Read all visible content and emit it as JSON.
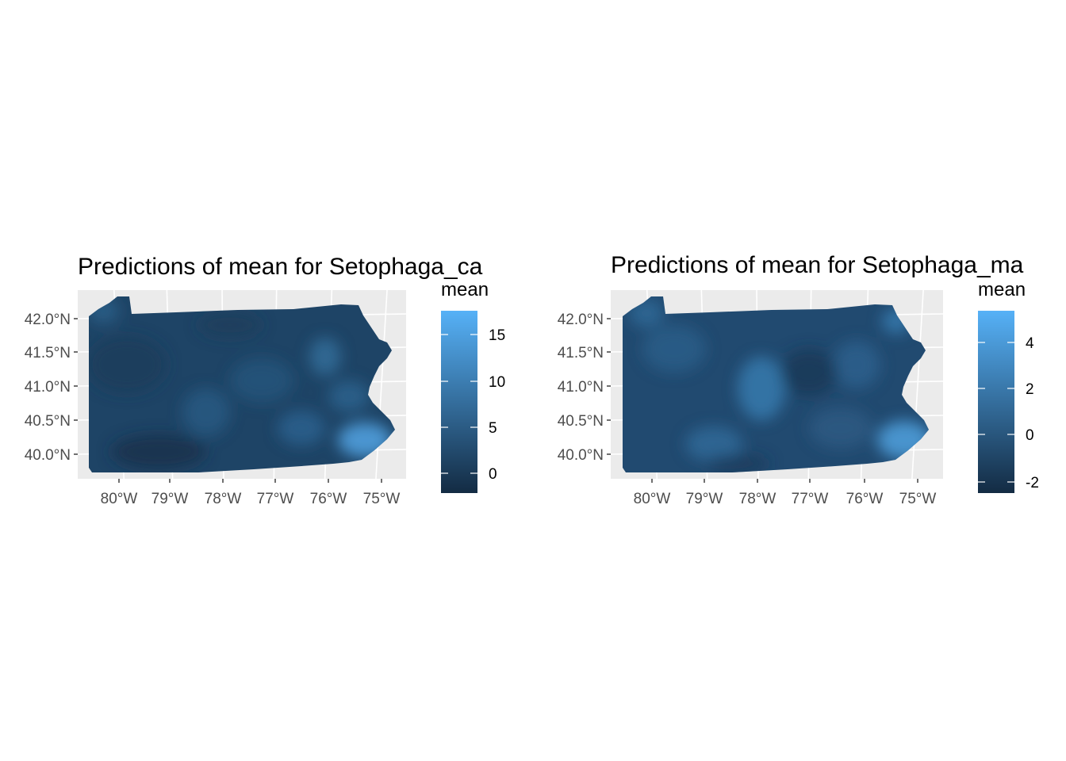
{
  "panels": [
    {
      "id": "left",
      "title": "Predictions of mean for Setophaga_ca",
      "legend_title": "mean",
      "legend_ticks": [
        "0",
        "5",
        "10",
        "15"
      ],
      "x_ticks": [
        "80°W",
        "79°W",
        "78°W",
        "77°W",
        "76°W",
        "75°W"
      ],
      "y_ticks": [
        "40.0°N",
        "40.5°N",
        "41.0°N",
        "41.5°N",
        "42.0°N"
      ]
    },
    {
      "id": "right",
      "title": "Predictions of mean for Setophaga_ma",
      "legend_title": "mean",
      "legend_ticks": [
        "-2",
        "0",
        "2",
        "4"
      ],
      "x_ticks": [
        "80°W",
        "79°W",
        "78°W",
        "77°W",
        "76°W",
        "75°W"
      ],
      "y_ticks": [
        "40.0°N",
        "40.5°N",
        "41.0°N",
        "41.5°N",
        "42.0°N"
      ]
    }
  ],
  "chart_data": [
    {
      "type": "heatmap",
      "title": "Predictions of mean for Setophaga_ca",
      "region": "Pennsylvania",
      "legend": {
        "title": "mean",
        "placement": "right",
        "range": [
          -2,
          17.3
        ],
        "ticks": [
          0,
          5,
          10,
          15
        ],
        "color_low": "#132B43",
        "color_high": "#56B1F7"
      },
      "x_ticks": [
        -80,
        -79,
        -78,
        -77,
        -76,
        -75
      ],
      "y_ticks": [
        40.0,
        40.5,
        41.0,
        41.5,
        42.0
      ],
      "xlim": [
        -80.6,
        -74.6
      ],
      "ylim": [
        39.7,
        42.3
      ],
      "grid": true,
      "background": "#EBEBEB"
    },
    {
      "type": "heatmap",
      "title": "Predictions of mean for Setophaga_ma",
      "region": "Pennsylvania",
      "legend": {
        "title": "mean",
        "placement": "right",
        "range": [
          -2.6,
          5.4
        ],
        "ticks": [
          -2,
          0,
          2,
          4
        ],
        "color_low": "#132B43",
        "color_high": "#56B1F7"
      },
      "x_ticks": [
        -80,
        -79,
        -78,
        -77,
        -76,
        -75
      ],
      "y_ticks": [
        40.0,
        40.5,
        41.0,
        41.5,
        42.0
      ],
      "xlim": [
        -80.6,
        -74.6
      ],
      "ylim": [
        39.7,
        42.3
      ],
      "grid": true,
      "background": "#EBEBEB"
    }
  ]
}
